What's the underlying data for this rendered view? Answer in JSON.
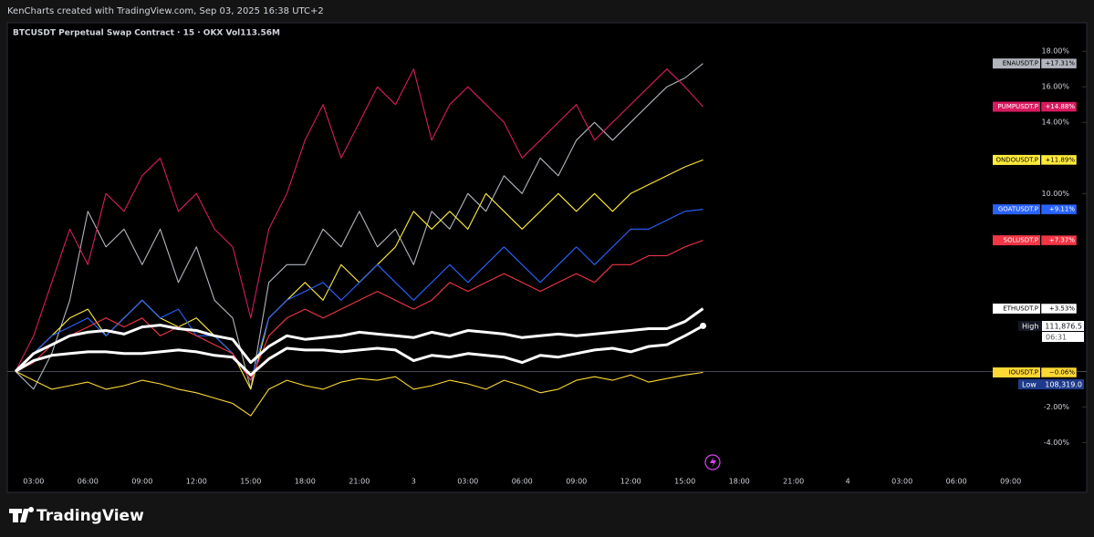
{
  "header": "KenCharts created with TradingView.com, Sep 03, 2025 16:38 UTC+2",
  "footer": "TradingView",
  "price_tags": {
    "high_label": "High",
    "high": "111,876.5",
    "countdown": "06:31",
    "low_label": "Low",
    "low": "108,319.0"
  },
  "chart_data": {
    "type": "line",
    "title": "BTCUSDT Perpetual Swap Contract · 15 · OKX  Vol113.56M",
    "categories": [
      null,
      "03:00",
      null,
      null,
      "06:00",
      null,
      null,
      "09:00",
      null,
      null,
      "12:00",
      null,
      null,
      "15:00",
      null,
      null,
      "18:00",
      null,
      null,
      "21:00",
      null,
      null,
      "3",
      null,
      null,
      "03:00",
      null,
      null,
      "06:00",
      null,
      null,
      "09:00",
      null,
      null,
      "12:00",
      null,
      null,
      "15:00",
      null,
      null,
      "18:00",
      null,
      null,
      "21:00",
      null,
      null,
      "4",
      null,
      null,
      "03:00",
      null,
      null,
      "06:00",
      null,
      null,
      "09:00"
    ],
    "ylim": [
      -6.8,
      19.6
    ],
    "yticks": [
      {
        "value": 18,
        "label": "18.00%"
      },
      {
        "value": 16,
        "label": "16.00%"
      },
      {
        "value": 14,
        "label": "14.00%"
      },
      {
        "value": 10,
        "label": "10.00%"
      },
      {
        "value": -2,
        "label": "-2.00%"
      },
      {
        "value": -4,
        "label": "-4.00%"
      }
    ],
    "series": [
      {
        "name": "ENAUSDT.P",
        "color": "#b2b5be",
        "values": [
          0,
          -1,
          1,
          4,
          9,
          7,
          8,
          6,
          8,
          5,
          7,
          4,
          3,
          -1,
          5,
          6,
          6,
          8,
          7,
          9,
          7,
          8,
          6,
          9,
          8,
          10,
          9,
          11,
          10,
          12,
          11,
          13,
          14,
          13,
          14,
          15,
          16,
          16.5,
          17.31,
          null,
          null,
          null,
          null,
          null,
          null,
          null,
          null,
          null,
          null,
          null,
          null,
          null,
          null,
          null,
          null,
          null
        ],
        "value_labels": [
          null,
          null,
          null,
          null,
          null,
          null,
          null,
          null,
          null,
          null,
          null,
          null,
          null,
          null,
          null,
          null,
          null,
          null,
          null,
          null,
          null,
          null,
          null,
          null,
          null,
          null,
          null,
          null,
          null,
          null,
          null,
          null,
          null,
          null,
          null,
          null,
          null,
          null,
          "+17.31%",
          null,
          null,
          null,
          null,
          null,
          null,
          null,
          null,
          null,
          null,
          null,
          null,
          null,
          null,
          null,
          null,
          null
        ]
      },
      {
        "name": "PUMPUSDT.P",
        "color": "#d81b60",
        "values": [
          0,
          2,
          5,
          8,
          6,
          10,
          9,
          11,
          12,
          9,
          10,
          8,
          7,
          3,
          8,
          10,
          13,
          15,
          12,
          14,
          16,
          15,
          17,
          13,
          15,
          16,
          15,
          14,
          12,
          13,
          14,
          15,
          13,
          14,
          15,
          16,
          17,
          16,
          14.88,
          null,
          null,
          null,
          null,
          null,
          null,
          null,
          null,
          null,
          null,
          null,
          null,
          null,
          null,
          null,
          null,
          null
        ],
        "value_labels": [
          null,
          null,
          null,
          null,
          null,
          null,
          null,
          null,
          null,
          null,
          null,
          null,
          null,
          null,
          null,
          null,
          null,
          null,
          null,
          null,
          null,
          null,
          null,
          null,
          null,
          null,
          null,
          null,
          null,
          null,
          null,
          null,
          null,
          null,
          null,
          null,
          null,
          null,
          "+14.88%",
          null,
          null,
          null,
          null,
          null,
          null,
          null,
          null,
          null,
          null,
          null,
          null,
          null,
          null,
          null,
          null,
          null
        ]
      },
      {
        "name": "ONDOUSDT.P",
        "color": "#ffeb3b",
        "values": [
          0,
          1,
          2,
          3,
          3.5,
          2,
          3,
          4,
          3,
          2.5,
          3,
          2,
          1,
          -1,
          3,
          4,
          5,
          4,
          6,
          5,
          6,
          7,
          9,
          8,
          9,
          8,
          10,
          9,
          8,
          9,
          10,
          9,
          10,
          9,
          10,
          10.5,
          11,
          11.5,
          11.89,
          null,
          null,
          null,
          null,
          null,
          null,
          null,
          null,
          null,
          null,
          null,
          null,
          null,
          null,
          null,
          null,
          null
        ],
        "value_labels": [
          null,
          null,
          null,
          null,
          null,
          null,
          null,
          null,
          null,
          null,
          null,
          null,
          null,
          null,
          null,
          null,
          null,
          null,
          null,
          null,
          null,
          null,
          null,
          null,
          null,
          null,
          null,
          null,
          null,
          null,
          null,
          null,
          null,
          null,
          null,
          null,
          null,
          null,
          "+11.89%",
          null,
          null,
          null,
          null,
          null,
          null,
          null,
          null,
          null,
          null,
          null,
          null,
          null,
          null,
          null,
          null,
          null
        ]
      },
      {
        "name": "GOATUSDT.P",
        "color": "#2962ff",
        "values": [
          0,
          1,
          2,
          2.5,
          3,
          2,
          3,
          4,
          3,
          3.5,
          2,
          2,
          1,
          -0.5,
          3,
          4,
          4.5,
          5,
          4,
          5,
          6,
          5,
          4,
          5,
          6,
          5,
          6,
          7,
          6,
          5,
          6,
          7,
          6,
          7,
          8,
          8,
          8.5,
          9,
          9.11,
          null,
          null,
          null,
          null,
          null,
          null,
          null,
          null,
          null,
          null,
          null,
          null,
          null,
          null,
          null,
          null,
          null
        ],
        "value_labels": [
          null,
          null,
          null,
          null,
          null,
          null,
          null,
          null,
          null,
          null,
          null,
          null,
          null,
          null,
          null,
          null,
          null,
          null,
          null,
          null,
          null,
          null,
          null,
          null,
          null,
          null,
          null,
          null,
          null,
          null,
          null,
          null,
          null,
          null,
          null,
          null,
          null,
          null,
          "+9.11%",
          null,
          null,
          null,
          null,
          null,
          null,
          null,
          null,
          null,
          null,
          null,
          null,
          null,
          null,
          null,
          null,
          null
        ]
      },
      {
        "name": "SOLUSDT.P",
        "color": "#f23645",
        "values": [
          0,
          0.5,
          1.5,
          2,
          2.5,
          3,
          2.5,
          3,
          2,
          2.5,
          2,
          1.5,
          1,
          -0.5,
          2,
          3,
          3.5,
          3,
          3.5,
          4,
          4.5,
          4,
          3.5,
          4,
          5,
          4.5,
          5,
          5.5,
          5,
          4.5,
          5,
          5.5,
          5,
          6,
          6,
          6.5,
          6.5,
          7,
          7.37,
          null,
          null,
          null,
          null,
          null,
          null,
          null,
          null,
          null,
          null,
          null,
          null,
          null,
          null,
          null,
          null,
          null
        ],
        "value_labels": [
          null,
          null,
          null,
          null,
          null,
          null,
          null,
          null,
          null,
          null,
          null,
          null,
          null,
          null,
          null,
          null,
          null,
          null,
          null,
          null,
          null,
          null,
          null,
          null,
          null,
          null,
          null,
          null,
          null,
          null,
          null,
          null,
          null,
          null,
          null,
          null,
          null,
          null,
          "+7.37%",
          null,
          null,
          null,
          null,
          null,
          null,
          null,
          null,
          null,
          null,
          null,
          null,
          null,
          null,
          null,
          null,
          null
        ]
      },
      {
        "name": "ETHUSDT.P",
        "color": "#ffffff",
        "values": [
          0,
          1,
          1.5,
          2,
          2.2,
          2.3,
          2.1,
          2.5,
          2.6,
          2.4,
          2.3,
          2,
          1.8,
          0.5,
          1.4,
          2,
          1.8,
          1.9,
          2,
          2.2,
          2.1,
          2,
          1.9,
          2.2,
          2,
          2.3,
          2.2,
          2.1,
          1.9,
          2,
          2.1,
          2,
          2.1,
          2.2,
          2.3,
          2.4,
          2.4,
          2.8,
          3.53,
          null,
          null,
          null,
          null,
          null,
          null,
          null,
          null,
          null,
          null,
          null,
          null,
          null,
          null,
          null,
          null,
          null
        ],
        "value_labels": [
          null,
          null,
          null,
          null,
          null,
          null,
          null,
          null,
          null,
          null,
          null,
          null,
          null,
          null,
          null,
          null,
          null,
          null,
          null,
          null,
          null,
          null,
          null,
          null,
          null,
          null,
          null,
          null,
          null,
          null,
          null,
          null,
          null,
          null,
          null,
          null,
          null,
          null,
          "+3.53%",
          null,
          null,
          null,
          null,
          null,
          null,
          null,
          null,
          null,
          null,
          null,
          null,
          null,
          null,
          null,
          null,
          null
        ]
      },
      {
        "name": "IOUSDT.P",
        "color": "#fdd835",
        "values": [
          0,
          -0.5,
          -1,
          -0.8,
          -0.6,
          -1,
          -0.8,
          -0.5,
          -0.7,
          -1,
          -1.2,
          -1.5,
          -1.8,
          -2.5,
          -1,
          -0.5,
          -0.8,
          -1,
          -0.6,
          -0.4,
          -0.5,
          -0.3,
          -1,
          -0.8,
          -0.5,
          -0.7,
          -1,
          -0.5,
          -0.8,
          -1.2,
          -1,
          -0.5,
          -0.3,
          -0.5,
          -0.2,
          -0.6,
          -0.4,
          -0.2,
          -0.06,
          null,
          null,
          null,
          null,
          null,
          null,
          null,
          null,
          null,
          null,
          null,
          null,
          null,
          null,
          null,
          null,
          null
        ],
        "value_labels": [
          null,
          null,
          null,
          null,
          null,
          null,
          null,
          null,
          null,
          null,
          null,
          null,
          null,
          null,
          null,
          null,
          null,
          null,
          null,
          null,
          null,
          null,
          null,
          null,
          null,
          null,
          null,
          null,
          null,
          null,
          null,
          null,
          null,
          null,
          null,
          null,
          null,
          null,
          "−0.06%",
          null,
          null,
          null,
          null,
          null,
          null,
          null,
          null,
          null,
          null,
          null,
          null,
          null,
          null,
          null,
          null,
          null
        ]
      },
      {
        "name": "BTCUSDT",
        "color": "#ffffff",
        "values": [
          0,
          0.6,
          0.9,
          1,
          1.1,
          1.1,
          1,
          1,
          1.1,
          1.2,
          1.1,
          0.9,
          0.8,
          -0.2,
          0.7,
          1.3,
          1.2,
          1.2,
          1.1,
          1.2,
          1.3,
          1.2,
          0.6,
          0.9,
          0.8,
          1,
          0.9,
          0.8,
          0.5,
          0.9,
          0.8,
          1,
          1.2,
          1.3,
          1.1,
          1.4,
          1.5,
          2,
          2.56,
          null,
          null,
          null,
          null,
          null,
          null,
          null,
          null,
          null,
          null,
          null,
          null,
          null,
          null,
          null,
          null,
          null
        ]
      }
    ]
  }
}
